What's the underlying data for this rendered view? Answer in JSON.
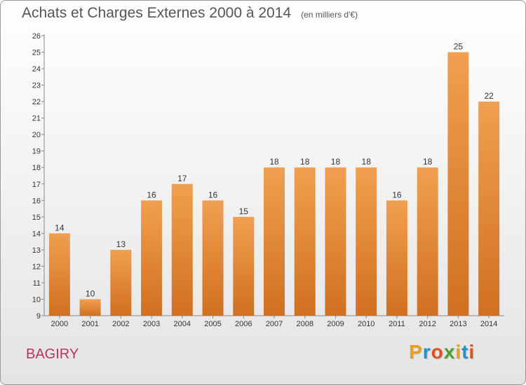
{
  "chart_data": {
    "type": "bar",
    "title": "Achats et Charges Externes 2000 à 2014",
    "subtitle": "(en milliers d'€)",
    "categories": [
      "2000",
      "2001",
      "2002",
      "2003",
      "2004",
      "2005",
      "2006",
      "2007",
      "2008",
      "2009",
      "2010",
      "2011",
      "2012",
      "2013",
      "2014"
    ],
    "values": [
      14,
      10,
      13,
      16,
      17,
      16,
      15,
      18,
      18,
      18,
      18,
      16,
      18,
      25,
      22
    ],
    "ylim": [
      9,
      26
    ],
    "yticks": [
      9,
      10,
      11,
      12,
      13,
      14,
      15,
      16,
      17,
      18,
      19,
      20,
      21,
      22,
      23,
      24,
      25,
      26
    ],
    "grid": false,
    "bar_color": "#f0a050",
    "bar_color_dark": "#d07020"
  },
  "commune": "BAGIRY",
  "brand": {
    "letters": [
      "P",
      "r",
      "o",
      "x",
      "i",
      "t",
      "i"
    ],
    "colors": [
      "#e8a020",
      "#2090d0",
      "#e05020",
      "#50a030",
      "#e8a020",
      "#2090d0",
      "#e05020"
    ]
  }
}
